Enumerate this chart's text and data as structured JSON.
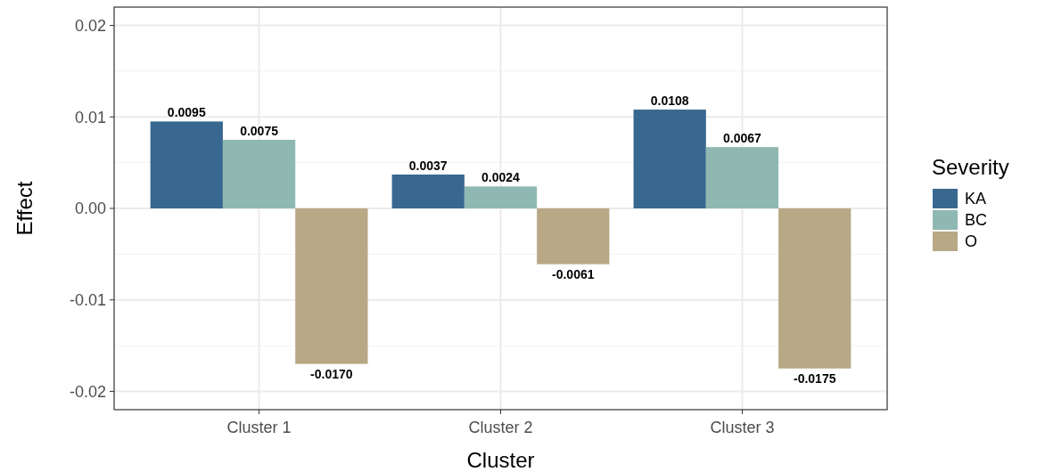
{
  "chart_data": {
    "type": "bar",
    "xlabel": "Cluster",
    "ylabel": "Effect",
    "legend_title": "Severity",
    "categories": [
      "Cluster 1",
      "Cluster 2",
      "Cluster 3"
    ],
    "series": [
      {
        "name": "KA",
        "color": "#386890",
        "values": [
          0.0095,
          0.0037,
          0.0108
        ],
        "value_labels": [
          "0.0095",
          "0.0037",
          "0.0108"
        ]
      },
      {
        "name": "BC",
        "color": "#8fb8b2",
        "values": [
          0.0075,
          0.0024,
          0.0067
        ],
        "value_labels": [
          "0.0075",
          "0.0024",
          "0.0067"
        ]
      },
      {
        "name": "O",
        "color": "#b8a886",
        "values": [
          -0.017,
          -0.0061,
          -0.0175
        ],
        "value_labels": [
          "-0.0170",
          "-0.0061",
          "-0.0175"
        ]
      }
    ],
    "ylim": [
      -0.022,
      0.022
    ],
    "yticks": [
      {
        "value": -0.02,
        "label": "-0.02"
      },
      {
        "value": -0.01,
        "label": "-0.01"
      },
      {
        "value": 0,
        "label": "0.00"
      },
      0.01,
      0.02
    ],
    "grid": true,
    "legend": "right"
  }
}
